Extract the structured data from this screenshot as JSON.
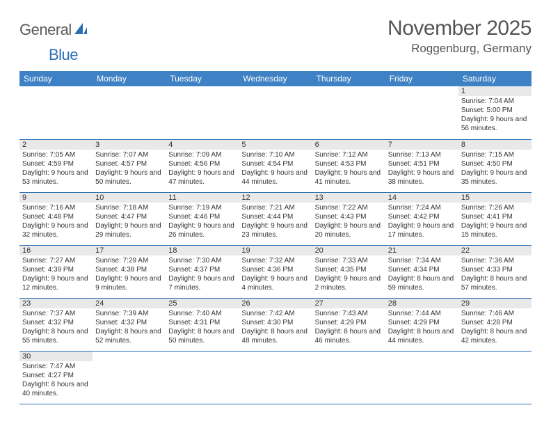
{
  "logo": {
    "word1": "General",
    "word2": "Blue"
  },
  "title": "November 2025",
  "location": "Roggenburg, Germany",
  "header_bg": "#3e81c4",
  "rule_color": "#2b6fb5",
  "dayhead_bg": "#e9e9e9",
  "weekdays": [
    "Sunday",
    "Monday",
    "Tuesday",
    "Wednesday",
    "Thursday",
    "Friday",
    "Saturday"
  ],
  "grid": [
    [
      null,
      null,
      null,
      null,
      null,
      null,
      {
        "n": "1",
        "sr": "7:04 AM",
        "ss": "5:00 PM",
        "dl": "9 hours and 56 minutes."
      }
    ],
    [
      {
        "n": "2",
        "sr": "7:05 AM",
        "ss": "4:59 PM",
        "dl": "9 hours and 53 minutes."
      },
      {
        "n": "3",
        "sr": "7:07 AM",
        "ss": "4:57 PM",
        "dl": "9 hours and 50 minutes."
      },
      {
        "n": "4",
        "sr": "7:09 AM",
        "ss": "4:56 PM",
        "dl": "9 hours and 47 minutes."
      },
      {
        "n": "5",
        "sr": "7:10 AM",
        "ss": "4:54 PM",
        "dl": "9 hours and 44 minutes."
      },
      {
        "n": "6",
        "sr": "7:12 AM",
        "ss": "4:53 PM",
        "dl": "9 hours and 41 minutes."
      },
      {
        "n": "7",
        "sr": "7:13 AM",
        "ss": "4:51 PM",
        "dl": "9 hours and 38 minutes."
      },
      {
        "n": "8",
        "sr": "7:15 AM",
        "ss": "4:50 PM",
        "dl": "9 hours and 35 minutes."
      }
    ],
    [
      {
        "n": "9",
        "sr": "7:16 AM",
        "ss": "4:48 PM",
        "dl": "9 hours and 32 minutes."
      },
      {
        "n": "10",
        "sr": "7:18 AM",
        "ss": "4:47 PM",
        "dl": "9 hours and 29 minutes."
      },
      {
        "n": "11",
        "sr": "7:19 AM",
        "ss": "4:46 PM",
        "dl": "9 hours and 26 minutes."
      },
      {
        "n": "12",
        "sr": "7:21 AM",
        "ss": "4:44 PM",
        "dl": "9 hours and 23 minutes."
      },
      {
        "n": "13",
        "sr": "7:22 AM",
        "ss": "4:43 PM",
        "dl": "9 hours and 20 minutes."
      },
      {
        "n": "14",
        "sr": "7:24 AM",
        "ss": "4:42 PM",
        "dl": "9 hours and 17 minutes."
      },
      {
        "n": "15",
        "sr": "7:26 AM",
        "ss": "4:41 PM",
        "dl": "9 hours and 15 minutes."
      }
    ],
    [
      {
        "n": "16",
        "sr": "7:27 AM",
        "ss": "4:39 PM",
        "dl": "9 hours and 12 minutes."
      },
      {
        "n": "17",
        "sr": "7:29 AM",
        "ss": "4:38 PM",
        "dl": "9 hours and 9 minutes."
      },
      {
        "n": "18",
        "sr": "7:30 AM",
        "ss": "4:37 PM",
        "dl": "9 hours and 7 minutes."
      },
      {
        "n": "19",
        "sr": "7:32 AM",
        "ss": "4:36 PM",
        "dl": "9 hours and 4 minutes."
      },
      {
        "n": "20",
        "sr": "7:33 AM",
        "ss": "4:35 PM",
        "dl": "9 hours and 2 minutes."
      },
      {
        "n": "21",
        "sr": "7:34 AM",
        "ss": "4:34 PM",
        "dl": "8 hours and 59 minutes."
      },
      {
        "n": "22",
        "sr": "7:36 AM",
        "ss": "4:33 PM",
        "dl": "8 hours and 57 minutes."
      }
    ],
    [
      {
        "n": "23",
        "sr": "7:37 AM",
        "ss": "4:32 PM",
        "dl": "8 hours and 55 minutes."
      },
      {
        "n": "24",
        "sr": "7:39 AM",
        "ss": "4:32 PM",
        "dl": "8 hours and 52 minutes."
      },
      {
        "n": "25",
        "sr": "7:40 AM",
        "ss": "4:31 PM",
        "dl": "8 hours and 50 minutes."
      },
      {
        "n": "26",
        "sr": "7:42 AM",
        "ss": "4:30 PM",
        "dl": "8 hours and 48 minutes."
      },
      {
        "n": "27",
        "sr": "7:43 AM",
        "ss": "4:29 PM",
        "dl": "8 hours and 46 minutes."
      },
      {
        "n": "28",
        "sr": "7:44 AM",
        "ss": "4:29 PM",
        "dl": "8 hours and 44 minutes."
      },
      {
        "n": "29",
        "sr": "7:46 AM",
        "ss": "4:28 PM",
        "dl": "8 hours and 42 minutes."
      }
    ],
    [
      {
        "n": "30",
        "sr": "7:47 AM",
        "ss": "4:27 PM",
        "dl": "8 hours and 40 minutes."
      },
      null,
      null,
      null,
      null,
      null,
      null
    ]
  ],
  "labels": {
    "sunrise": "Sunrise:",
    "sunset": "Sunset:",
    "daylight": "Daylight:"
  }
}
